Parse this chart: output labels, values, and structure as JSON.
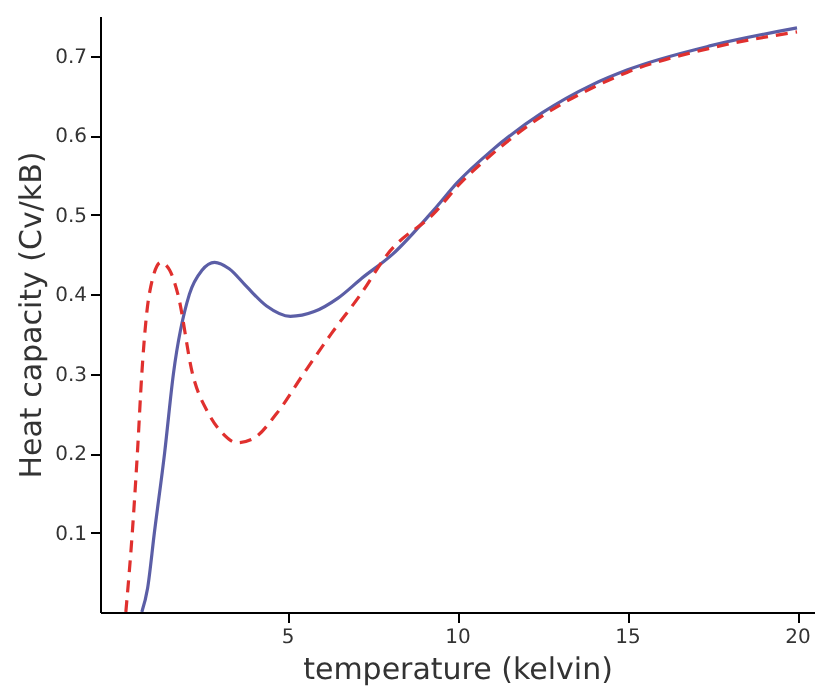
{
  "chart_data": {
    "type": "line",
    "xlabel": "temperature (kelvin)",
    "ylabel": "Heat capacity (Cv/kB)",
    "xlim": [
      -0.5,
      20.5
    ],
    "xticks": [
      5,
      10,
      15,
      20
    ],
    "ylim": [
      0,
      0.75
    ],
    "yticks": [
      0.1,
      0.2,
      0.3,
      0.4,
      0.5,
      0.6,
      0.7
    ],
    "grid": false,
    "series": [
      {
        "color": "#5b5ea6",
        "line_style": "solid",
        "x": [
          0.73,
          0.9,
          1.1,
          1.4,
          1.66,
          2.13,
          2.5,
          2.87,
          3.3,
          3.8,
          4.4,
          5.1,
          5.8,
          6.5,
          7.2,
          8.1,
          9.4,
          10,
          11,
          12.5,
          14,
          15,
          17.5,
          20
        ],
        "values": [
          0,
          0.03,
          0.1,
          0.2,
          0.3,
          0.4,
          0.43,
          0.44,
          0.432,
          0.41,
          0.385,
          0.372,
          0.378,
          0.395,
          0.42,
          0.45,
          0.51,
          0.54,
          0.58,
          0.628,
          0.664,
          0.682,
          0.713,
          0.735
        ]
      },
      {
        "color": "#e0302e",
        "line_style": "dashed",
        "x": [
          0.26,
          0.45,
          0.6,
          0.73,
          0.95,
          1.29,
          1.55,
          1.79,
          2.22,
          2.69,
          3.1,
          3.53,
          4.0,
          4.7,
          5.49,
          6.3,
          7.17,
          7.95,
          9.4,
          10,
          11,
          12.5,
          14,
          15,
          17.5,
          20
        ],
        "values": [
          0,
          0.1,
          0.2,
          0.3,
          0.4,
          0.44,
          0.43,
          0.4,
          0.3,
          0.25,
          0.225,
          0.213,
          0.218,
          0.25,
          0.3,
          0.35,
          0.4,
          0.45,
          0.505,
          0.535,
          0.575,
          0.624,
          0.66,
          0.679,
          0.71,
          0.73
        ]
      }
    ]
  }
}
